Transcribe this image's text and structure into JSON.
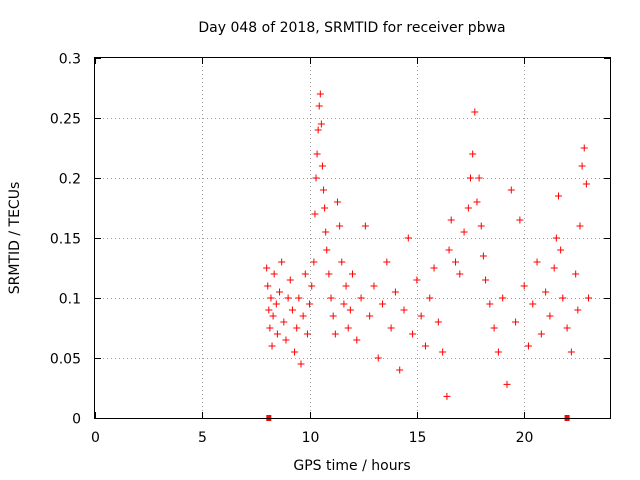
{
  "chart_data": {
    "type": "scatter",
    "title": "Day 048 of 2018, SRMTID for receiver pbwa",
    "xlabel": "GPS time / hours",
    "ylabel": "SRMTID / TECUs",
    "xlim": [
      0,
      24
    ],
    "ylim": [
      0,
      0.3
    ],
    "xticks": [
      0,
      5,
      10,
      15,
      20
    ],
    "xtick_labels": [
      "0",
      "5",
      "10",
      "15",
      "20"
    ],
    "yticks": [
      0,
      0.05,
      0.1,
      0.15,
      0.2,
      0.25,
      0.3
    ],
    "ytick_labels": [
      "0",
      "0.05",
      "0.1",
      "0.15",
      "0.2",
      "0.25",
      "0.3"
    ],
    "grid": true,
    "marker": "+",
    "color": "#ff0000",
    "legend": "none",
    "series": [
      {
        "name": "SRMTID",
        "points": [
          [
            8.0,
            0.125
          ],
          [
            8.05,
            0.11
          ],
          [
            8.1,
            0.09
          ],
          [
            8.15,
            0.075
          ],
          [
            8.2,
            0.1
          ],
          [
            8.25,
            0.06
          ],
          [
            8.3,
            0.085
          ],
          [
            8.35,
            0.12
          ],
          [
            8.45,
            0.095
          ],
          [
            8.5,
            0.07
          ],
          [
            8.6,
            0.105
          ],
          [
            8.7,
            0.13
          ],
          [
            8.8,
            0.08
          ],
          [
            8.9,
            0.065
          ],
          [
            9.0,
            0.1
          ],
          [
            9.1,
            0.115
          ],
          [
            9.2,
            0.09
          ],
          [
            9.3,
            0.055
          ],
          [
            9.4,
            0.075
          ],
          [
            9.5,
            0.1
          ],
          [
            9.6,
            0.045
          ],
          [
            9.7,
            0.085
          ],
          [
            9.8,
            0.12
          ],
          [
            9.9,
            0.07
          ],
          [
            10.0,
            0.095
          ],
          [
            10.1,
            0.11
          ],
          [
            10.2,
            0.13
          ],
          [
            10.25,
            0.17
          ],
          [
            10.3,
            0.2
          ],
          [
            10.35,
            0.22
          ],
          [
            10.4,
            0.24
          ],
          [
            10.45,
            0.26
          ],
          [
            10.5,
            0.27
          ],
          [
            10.55,
            0.245
          ],
          [
            10.6,
            0.21
          ],
          [
            10.65,
            0.19
          ],
          [
            10.7,
            0.175
          ],
          [
            10.75,
            0.155
          ],
          [
            10.8,
            0.14
          ],
          [
            10.9,
            0.12
          ],
          [
            11.0,
            0.1
          ],
          [
            11.1,
            0.085
          ],
          [
            11.2,
            0.07
          ],
          [
            11.3,
            0.18
          ],
          [
            11.4,
            0.16
          ],
          [
            11.5,
            0.13
          ],
          [
            11.6,
            0.095
          ],
          [
            11.7,
            0.11
          ],
          [
            11.8,
            0.075
          ],
          [
            11.9,
            0.09
          ],
          [
            12.0,
            0.12
          ],
          [
            12.2,
            0.065
          ],
          [
            12.4,
            0.1
          ],
          [
            12.6,
            0.16
          ],
          [
            12.8,
            0.085
          ],
          [
            13.0,
            0.11
          ],
          [
            13.2,
            0.05
          ],
          [
            13.4,
            0.095
          ],
          [
            13.6,
            0.13
          ],
          [
            13.8,
            0.075
          ],
          [
            14.0,
            0.105
          ],
          [
            14.2,
            0.04
          ],
          [
            14.4,
            0.09
          ],
          [
            14.6,
            0.15
          ],
          [
            14.8,
            0.07
          ],
          [
            15.0,
            0.115
          ],
          [
            15.2,
            0.085
          ],
          [
            15.4,
            0.06
          ],
          [
            15.6,
            0.1
          ],
          [
            15.8,
            0.125
          ],
          [
            16.0,
            0.08
          ],
          [
            16.2,
            0.055
          ],
          [
            16.4,
            0.018
          ],
          [
            16.5,
            0.14
          ],
          [
            16.6,
            0.165
          ],
          [
            16.8,
            0.13
          ],
          [
            17.0,
            0.12
          ],
          [
            17.2,
            0.155
          ],
          [
            17.4,
            0.175
          ],
          [
            17.5,
            0.2
          ],
          [
            17.6,
            0.22
          ],
          [
            17.7,
            0.255
          ],
          [
            17.8,
            0.18
          ],
          [
            17.9,
            0.2
          ],
          [
            18.0,
            0.16
          ],
          [
            18.1,
            0.135
          ],
          [
            18.2,
            0.115
          ],
          [
            18.4,
            0.095
          ],
          [
            18.6,
            0.075
          ],
          [
            18.8,
            0.055
          ],
          [
            19.0,
            0.1
          ],
          [
            19.2,
            0.028
          ],
          [
            19.4,
            0.19
          ],
          [
            19.6,
            0.08
          ],
          [
            19.8,
            0.165
          ],
          [
            20.0,
            0.11
          ],
          [
            20.2,
            0.06
          ],
          [
            20.4,
            0.095
          ],
          [
            20.6,
            0.13
          ],
          [
            20.8,
            0.07
          ],
          [
            21.0,
            0.105
          ],
          [
            21.2,
            0.085
          ],
          [
            21.4,
            0.125
          ],
          [
            21.5,
            0.15
          ],
          [
            21.6,
            0.185
          ],
          [
            21.7,
            0.14
          ],
          [
            21.8,
            0.1
          ],
          [
            22.0,
            0.075
          ],
          [
            22.2,
            0.055
          ],
          [
            22.4,
            0.12
          ],
          [
            22.5,
            0.09
          ],
          [
            22.6,
            0.16
          ],
          [
            22.7,
            0.21
          ],
          [
            22.8,
            0.225
          ],
          [
            22.9,
            0.195
          ],
          [
            23.0,
            0.1
          ]
        ]
      }
    ],
    "baseline_markers": [
      {
        "x": 8.1,
        "y": 0.0
      },
      {
        "x": 22.0,
        "y": 0.0
      }
    ]
  }
}
